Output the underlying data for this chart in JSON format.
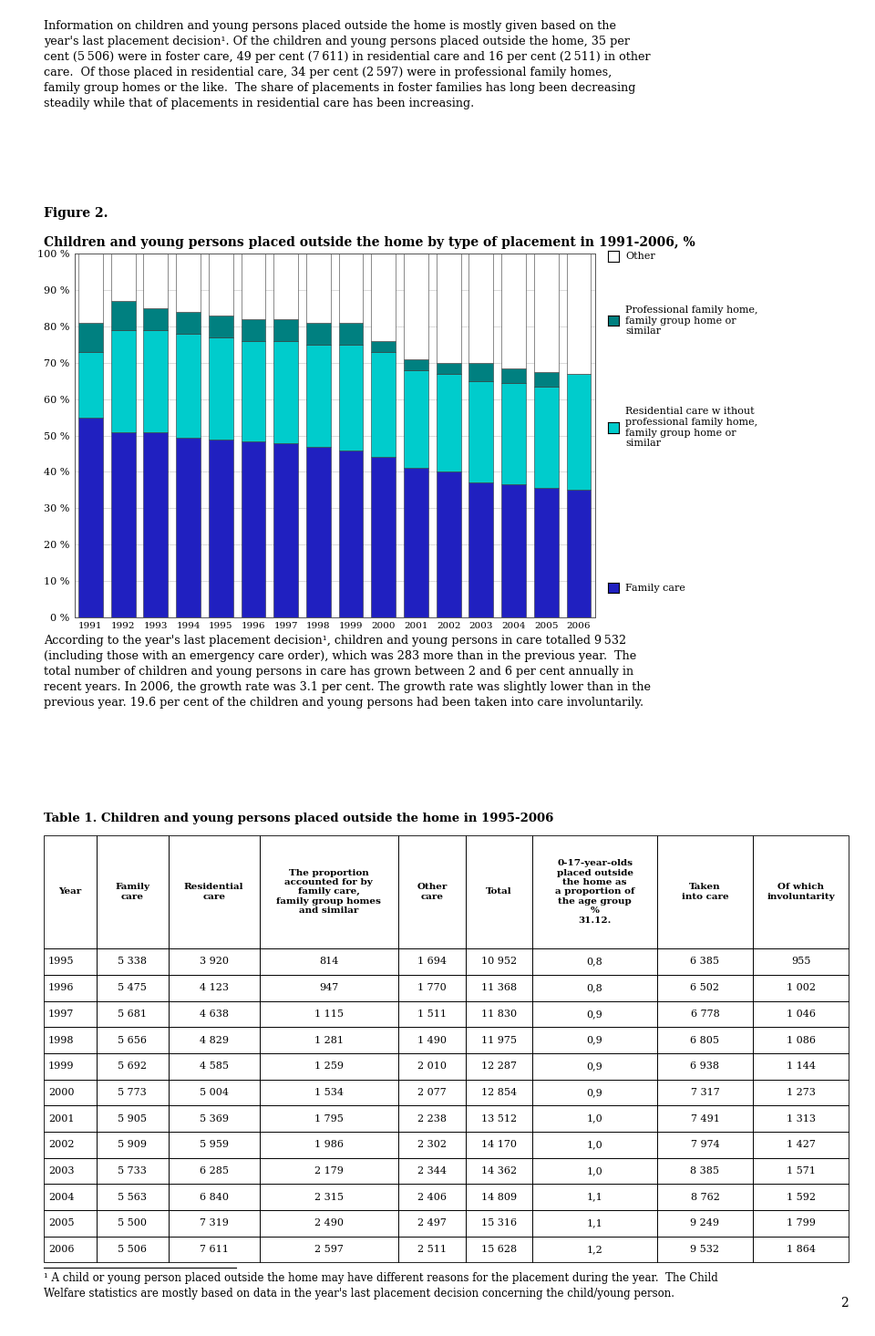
{
  "figure_label": "Figure 2.",
  "figure_title": "Children and young persons placed outside the home by type of placement in 1991-2006, %",
  "years": [
    1991,
    1992,
    1993,
    1994,
    1995,
    1996,
    1997,
    1998,
    1999,
    2000,
    2001,
    2002,
    2003,
    2004,
    2005,
    2006
  ],
  "family_care": [
    55,
    51,
    51,
    49.5,
    49,
    48.5,
    48,
    47,
    46,
    44,
    41,
    40,
    37,
    36.5,
    35.5,
    35
  ],
  "residential_without": [
    18,
    28,
    28,
    28.5,
    28,
    27.5,
    28,
    28,
    29,
    29,
    27,
    27,
    28,
    28,
    28,
    32
  ],
  "professional_family": [
    8,
    8,
    6,
    6,
    6,
    6,
    6,
    6,
    6,
    3,
    3,
    3,
    5,
    4,
    4,
    0
  ],
  "other": [
    19,
    13,
    15,
    16,
    17,
    18,
    18,
    19,
    19,
    24,
    29,
    30,
    30,
    31.5,
    32.5,
    33
  ],
  "colors": {
    "family_care": "#2020C0",
    "residential_without": "#00CCCC",
    "professional_family": "#008080",
    "other": "#FFFFFF"
  },
  "yticks": [
    0,
    10,
    20,
    30,
    40,
    50,
    60,
    70,
    80,
    90,
    100
  ],
  "ytick_labels": [
    "0 %",
    "10 %",
    "20 %",
    "30 %",
    "40 %",
    "50 %",
    "60 %",
    "70 %",
    "80 %",
    "90 %",
    "100 %"
  ],
  "table_headers": [
    "Year",
    "Family\ncare",
    "Residential\ncare",
    "The proportion\naccounted for by\nfamily care,\nfamily group homes\nand similar",
    "Other\ncare",
    "Total",
    "0-17-year-olds\nplaced outside\nthe home as\na proportion of\nthe age group\n%\n31.12.",
    "Taken\ninto care",
    "Of which\ninvoluntarity"
  ],
  "table_data": [
    [
      "1995",
      "5 338",
      "3 920",
      "814",
      "1 694",
      "10 952",
      "0,8",
      "6 385",
      "955"
    ],
    [
      "1996",
      "5 475",
      "4 123",
      "947",
      "1 770",
      "11 368",
      "0,8",
      "6 502",
      "1 002"
    ],
    [
      "1997",
      "5 681",
      "4 638",
      "1 115",
      "1 511",
      "11 830",
      "0,9",
      "6 778",
      "1 046"
    ],
    [
      "1998",
      "5 656",
      "4 829",
      "1 281",
      "1 490",
      "11 975",
      "0,9",
      "6 805",
      "1 086"
    ],
    [
      "1999",
      "5 692",
      "4 585",
      "1 259",
      "2 010",
      "12 287",
      "0,9",
      "6 938",
      "1 144"
    ],
    [
      "2000",
      "5 773",
      "5 004",
      "1 534",
      "2 077",
      "12 854",
      "0,9",
      "7 317",
      "1 273"
    ],
    [
      "2001",
      "5 905",
      "5 369",
      "1 795",
      "2 238",
      "13 512",
      "1,0",
      "7 491",
      "1 313"
    ],
    [
      "2002",
      "5 909",
      "5 959",
      "1 986",
      "2 302",
      "14 170",
      "1,0",
      "7 974",
      "1 427"
    ],
    [
      "2003",
      "5 733",
      "6 285",
      "2 179",
      "2 344",
      "14 362",
      "1,0",
      "8 385",
      "1 571"
    ],
    [
      "2004",
      "5 563",
      "6 840",
      "2 315",
      "2 406",
      "14 809",
      "1,1",
      "8 762",
      "1 592"
    ],
    [
      "2005",
      "5 500",
      "7 319",
      "2 490",
      "2 497",
      "15 316",
      "1,1",
      "9 249",
      "1 799"
    ],
    [
      "2006",
      "5 506",
      "7 611",
      "2 597",
      "2 511",
      "15 628",
      "1,2",
      "9 532",
      "1 864"
    ]
  ],
  "col_widths": [
    0.055,
    0.075,
    0.095,
    0.145,
    0.07,
    0.07,
    0.13,
    0.1,
    0.1
  ],
  "page_number": "2"
}
